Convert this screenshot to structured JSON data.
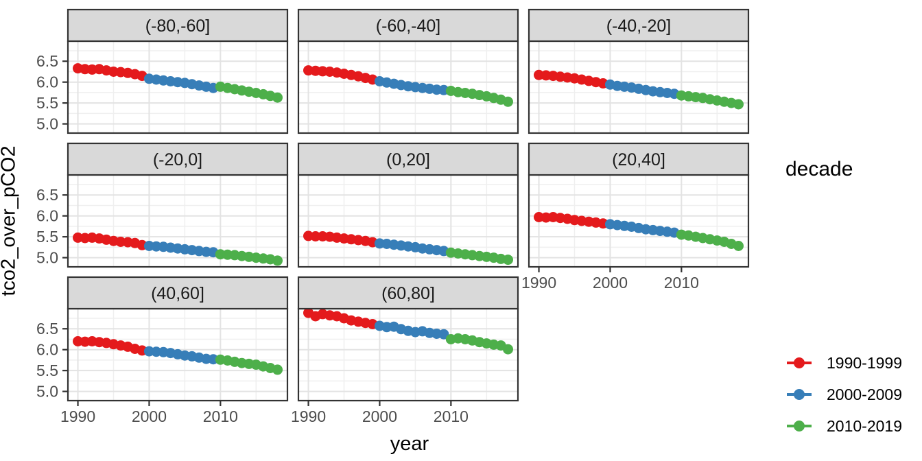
{
  "figure": {
    "x_axis_title": "year",
    "y_axis_title": "tco2_over_pCO2",
    "legend": {
      "title": "decade",
      "entries": [
        {
          "label": "1990-1999",
          "color": "#E41A1C"
        },
        {
          "label": "2000-2009",
          "color": "#377EB8"
        },
        {
          "label": "2010-2019",
          "color": "#4DAF4A"
        }
      ]
    }
  },
  "colors": {
    "background": "#ffffff",
    "strip_bg": "#d9d9d9",
    "strip_text": "#1a1a1a",
    "panel_border": "#333333",
    "tick_label": "#4d4d4d",
    "grid_major": "#e3e3e3",
    "grid_minor": "#efefef",
    "point_red": "#E41A1C",
    "point_blue": "#377EB8",
    "point_green": "#4DAF4A"
  },
  "chart_data": {
    "type": "line",
    "title": "",
    "xlabel": "year",
    "ylabel": "tco2_over_pCO2",
    "legend_title": "decade",
    "legend_position": "right",
    "grid": "major+minor",
    "facet_layout": {
      "ncol": 3,
      "nrow": 3
    },
    "x_range": [
      1988.6,
      2019.4
    ],
    "y_range": [
      4.78,
      6.98
    ],
    "x_ticks": [
      1990,
      2000,
      2010
    ],
    "x_tick_labels": [
      "1990",
      "2000",
      "2010"
    ],
    "x_minor": [
      1995,
      2005,
      2015
    ],
    "y_ticks": [
      5.0,
      5.5,
      6.0,
      6.5
    ],
    "y_tick_labels": [
      "5.0",
      "5.5",
      "6.0",
      "6.5"
    ],
    "y_minor": [
      5.25,
      5.75,
      6.25,
      6.75
    ],
    "years": [
      1990,
      1991,
      1992,
      1993,
      1994,
      1995,
      1996,
      1997,
      1998,
      1999,
      2000,
      2001,
      2002,
      2003,
      2004,
      2005,
      2006,
      2007,
      2008,
      2009,
      2010,
      2011,
      2012,
      2013,
      2014,
      2015,
      2016,
      2017,
      2018
    ],
    "decades": [
      {
        "name": "1990-1999",
        "color": "#E41A1C",
        "start_year": 1990,
        "end_year": 1999
      },
      {
        "name": "2000-2009",
        "color": "#377EB8",
        "start_year": 2000,
        "end_year": 2009
      },
      {
        "name": "2010-2019",
        "color": "#4DAF4A",
        "start_year": 2010,
        "end_year": 2019
      }
    ],
    "facets": [
      {
        "label": "(-80,-60]",
        "values": [
          6.33,
          6.31,
          6.3,
          6.31,
          6.28,
          6.25,
          6.24,
          6.22,
          6.19,
          6.15,
          6.08,
          6.06,
          6.04,
          6.02,
          6.0,
          5.98,
          5.95,
          5.92,
          5.89,
          5.86,
          5.89,
          5.86,
          5.83,
          5.8,
          5.77,
          5.74,
          5.71,
          5.67,
          5.63
        ]
      },
      {
        "label": "(-60,-40]",
        "values": [
          6.28,
          6.27,
          6.26,
          6.25,
          6.23,
          6.2,
          6.17,
          6.14,
          6.1,
          6.06,
          6.02,
          5.99,
          5.96,
          5.93,
          5.9,
          5.88,
          5.86,
          5.84,
          5.82,
          5.81,
          5.79,
          5.76,
          5.74,
          5.72,
          5.69,
          5.66,
          5.62,
          5.58,
          5.53
        ]
      },
      {
        "label": "(-40,-20]",
        "values": [
          6.17,
          6.16,
          6.15,
          6.13,
          6.11,
          6.09,
          6.06,
          6.03,
          6.0,
          5.97,
          5.94,
          5.91,
          5.89,
          5.87,
          5.84,
          5.81,
          5.78,
          5.76,
          5.74,
          5.72,
          5.68,
          5.66,
          5.64,
          5.62,
          5.59,
          5.56,
          5.53,
          5.5,
          5.47
        ]
      },
      {
        "label": "(-20,0]",
        "values": [
          5.48,
          5.47,
          5.48,
          5.46,
          5.43,
          5.4,
          5.38,
          5.37,
          5.35,
          5.3,
          5.28,
          5.27,
          5.26,
          5.24,
          5.22,
          5.2,
          5.18,
          5.16,
          5.14,
          5.13,
          5.08,
          5.07,
          5.06,
          5.04,
          5.02,
          5.0,
          4.98,
          4.96,
          4.93
        ]
      },
      {
        "label": "(0,20]",
        "values": [
          5.52,
          5.51,
          5.51,
          5.5,
          5.48,
          5.46,
          5.44,
          5.42,
          5.4,
          5.37,
          5.34,
          5.33,
          5.31,
          5.29,
          5.27,
          5.25,
          5.22,
          5.2,
          5.18,
          5.16,
          5.12,
          5.1,
          5.08,
          5.06,
          5.04,
          5.02,
          5.0,
          4.97,
          4.95
        ]
      },
      {
        "label": "(20,40]",
        "values": [
          5.97,
          5.96,
          5.97,
          5.95,
          5.93,
          5.9,
          5.88,
          5.86,
          5.84,
          5.82,
          5.8,
          5.78,
          5.76,
          5.74,
          5.71,
          5.68,
          5.66,
          5.64,
          5.62,
          5.6,
          5.55,
          5.53,
          5.5,
          5.47,
          5.44,
          5.41,
          5.38,
          5.33,
          5.28
        ]
      },
      {
        "label": "(40,60]",
        "values": [
          6.2,
          6.19,
          6.2,
          6.18,
          6.16,
          6.13,
          6.1,
          6.07,
          6.02,
          5.98,
          5.96,
          5.95,
          5.94,
          5.92,
          5.89,
          5.86,
          5.84,
          5.81,
          5.78,
          5.77,
          5.76,
          5.74,
          5.71,
          5.68,
          5.66,
          5.64,
          5.6,
          5.56,
          5.52
        ]
      },
      {
        "label": "(60,80]",
        "values": [
          6.88,
          6.8,
          6.85,
          6.82,
          6.8,
          6.75,
          6.7,
          6.67,
          6.64,
          6.61,
          6.57,
          6.54,
          6.55,
          6.49,
          6.45,
          6.42,
          6.44,
          6.4,
          6.38,
          6.37,
          6.25,
          6.27,
          6.25,
          6.22,
          6.18,
          6.15,
          6.12,
          6.1,
          6.01
        ]
      }
    ]
  }
}
